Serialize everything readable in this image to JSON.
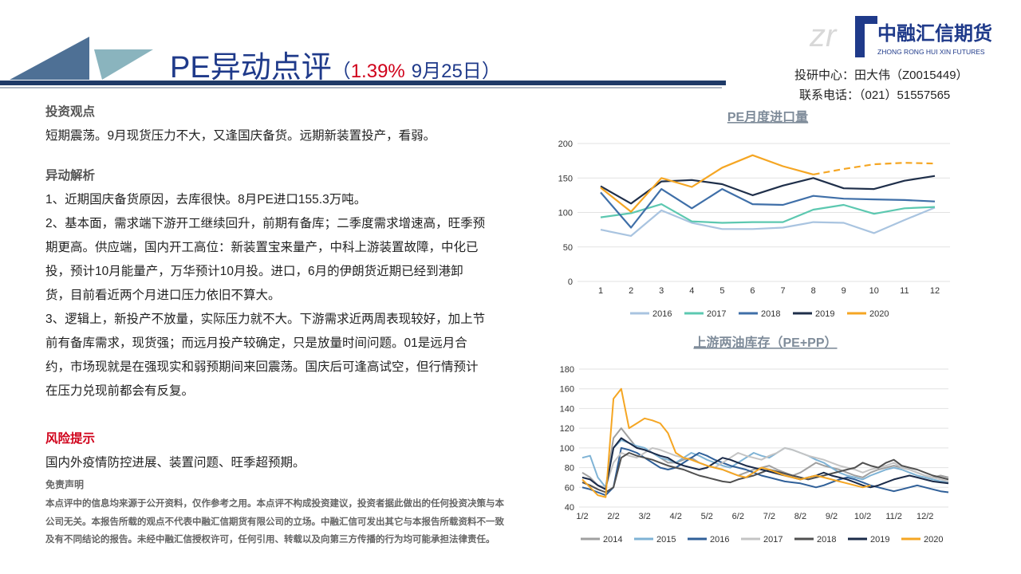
{
  "header": {
    "title": "PE异动点评",
    "open_paren": "（",
    "change": "1.39%",
    "date": "9月25日",
    "close_paren": "）",
    "logo_cn": "中融汇信期货",
    "logo_en": "ZHONG RONG HUI XIN FUTURES",
    "author": "投研中心：田大伟（Z0015449）",
    "phone": "联系电话：（021）51557565"
  },
  "body": {
    "view_heading": "投资观点",
    "view_text": "短期震荡。9月现货压力不大，又逢国庆备货。远期新装置投产，看弱。",
    "analysis_heading": "异动解析",
    "analysis": [
      "1、近期国庆备货原因，去库很快。8月PE进口155.3万吨。",
      "2、基本面，需求端下游开工继续回升，前期有备库；二季度需求增速高，旺季预期更高。供应端，国内开工高位：新装置宝来量产，中科上游装置故障，中化已投，预计10月能量产，万华预计10月投。进口，6月的伊朗货近期已经到港卸货，目前看近两个月进口压力依旧不算大。",
      "3、逻辑上，新投产不放量，实际压力就不大。下游需求近两周表现较好，加上节前有备库需求，现货强；而远月投产较确定，只是放量时间问题。01是远月合约，市场现就是在强现实和弱预期间来回震荡。国庆后可逢高试空，但行情预计在压力兑现前都会有反复。"
    ],
    "risk_heading": "风险提示",
    "risk_text": "国内外疫情防控进展、装置问题、旺季超预期。"
  },
  "disclaimer": {
    "heading": "免责声明",
    "text": "本点评中的信息均来源于公开资料，仅作参考之用。本点评不构成投资建议，投资者据此做出的任何投资决策与本公司无关。本报告所载的观点不代表中融汇信期货有限公司的立场。中融汇信可发出其它与本报告所载资料不一致及有不同结论的报告。未经中融汇信授权许可，任何引用、转载以及向第三方传播的行为均可能承担法律责任。"
  },
  "chart_data": [
    {
      "type": "line",
      "title": "PE月度进口量",
      "categories": [
        "1",
        "2",
        "3",
        "4",
        "5",
        "6",
        "7",
        "8",
        "9",
        "10",
        "11",
        "12"
      ],
      "ylim": [
        0,
        200
      ],
      "yticks": [
        0,
        50,
        100,
        150,
        200
      ],
      "grid": true,
      "legend": "bottom",
      "series": [
        {
          "name": "2016",
          "color": "#a9c4e0",
          "values": [
            75,
            66,
            103,
            85,
            76,
            76,
            78,
            86,
            85,
            70,
            89,
            107
          ]
        },
        {
          "name": "2017",
          "color": "#5cc8b0",
          "values": [
            93,
            99,
            112,
            87,
            85,
            86,
            86,
            104,
            111,
            98,
            106,
            108
          ]
        },
        {
          "name": "2018",
          "color": "#3f6fa8",
          "values": [
            129,
            78,
            134,
            106,
            134,
            112,
            111,
            124,
            120,
            119,
            118,
            116
          ]
        },
        {
          "name": "2019",
          "color": "#1f2f4a",
          "values": [
            138,
            113,
            145,
            147,
            141,
            125,
            139,
            150,
            135,
            134,
            146,
            153
          ]
        },
        {
          "name": "2020",
          "color": "#f5a623",
          "dash_from": 7,
          "values": [
            136,
            101,
            150,
            137,
            165,
            183,
            167,
            155,
            163,
            170,
            172,
            171
          ]
        }
      ]
    },
    {
      "type": "line",
      "title": "上游两油库存（PE+PP）",
      "categories": [
        "1/2",
        null,
        null,
        null,
        "2/2",
        null,
        null,
        null,
        "3/2",
        null,
        null,
        null,
        "4/2",
        null,
        null,
        null,
        "5/2",
        null,
        null,
        null,
        "6/2",
        null,
        null,
        null,
        "7/2",
        null,
        null,
        null,
        "8/2",
        null,
        null,
        null,
        "9/2",
        null,
        null,
        null,
        "10/2",
        null,
        null,
        null,
        "11/2",
        null,
        null,
        null,
        "12/2",
        null,
        null,
        null
      ],
      "ylim": [
        40,
        180
      ],
      "yticks": [
        40,
        60,
        80,
        100,
        120,
        140,
        160,
        180
      ],
      "grid": true,
      "legend": "bottom",
      "series": [
        {
          "name": "2014",
          "color": "#a0a0a0",
          "values": [
            75,
            70,
            62,
            60,
            110,
            120,
            110,
            100,
            98,
            95,
            90,
            85,
            85,
            88,
            90,
            85,
            82,
            80,
            78,
            75,
            72,
            75,
            78,
            80,
            82,
            78,
            75,
            72,
            75,
            80,
            85,
            82,
            80,
            78,
            75,
            72,
            70,
            75,
            78,
            80,
            82,
            80,
            78,
            75,
            72,
            70,
            72,
            70
          ]
        },
        {
          "name": "2015",
          "color": "#7fb3d5",
          "values": [
            90,
            92,
            70,
            60,
            100,
            108,
            105,
            102,
            100,
            95,
            90,
            88,
            85,
            90,
            95,
            92,
            88,
            85,
            82,
            80,
            85,
            90,
            95,
            92,
            90,
            95,
            100,
            98,
            95,
            92,
            88,
            85,
            80,
            75,
            72,
            70,
            68,
            72,
            75,
            78,
            80,
            78,
            75,
            72,
            70,
            68,
            66,
            65
          ]
        },
        {
          "name": "2016",
          "color": "#2f5f98",
          "values": [
            60,
            58,
            55,
            52,
            60,
            100,
            98,
            95,
            90,
            85,
            80,
            78,
            80,
            85,
            90,
            95,
            92,
            88,
            85,
            82,
            80,
            78,
            75,
            72,
            70,
            68,
            66,
            65,
            64,
            62,
            60,
            62,
            65,
            68,
            70,
            68,
            65,
            62,
            60,
            58,
            56,
            58,
            60,
            62,
            60,
            58,
            56,
            55
          ]
        },
        {
          "name": "2017",
          "color": "#c4c4c4",
          "values": [
            70,
            68,
            62,
            60,
            85,
            95,
            92,
            90,
            95,
            100,
            98,
            95,
            92,
            90,
            88,
            85,
            82,
            80,
            85,
            90,
            95,
            92,
            90,
            88,
            92,
            95,
            100,
            98,
            95,
            92,
            90,
            88,
            85,
            82,
            80,
            78,
            75,
            78,
            80,
            82,
            85,
            80,
            78,
            75,
            72,
            70,
            68,
            66
          ]
        },
        {
          "name": "2018",
          "color": "#505050",
          "values": [
            65,
            62,
            58,
            55,
            60,
            90,
            95,
            92,
            90,
            88,
            85,
            82,
            80,
            78,
            75,
            72,
            70,
            68,
            66,
            65,
            68,
            70,
            72,
            75,
            78,
            76,
            74,
            72,
            70,
            68,
            70,
            72,
            74,
            76,
            78,
            80,
            85,
            82,
            80,
            85,
            88,
            82,
            80,
            78,
            75,
            72,
            70,
            68
          ]
        },
        {
          "name": "2019",
          "color": "#1a2a48",
          "values": [
            70,
            68,
            62,
            58,
            100,
            110,
            105,
            100,
            98,
            95,
            92,
            90,
            85,
            82,
            80,
            78,
            80,
            85,
            90,
            88,
            85,
            82,
            80,
            78,
            76,
            74,
            72,
            70,
            68,
            70,
            72,
            75,
            72,
            70,
            68,
            65,
            62,
            60,
            62,
            65,
            68,
            70,
            72,
            70,
            68,
            66,
            65,
            64
          ]
        },
        {
          "name": "2020",
          "color": "#f5a623",
          "values": [
            68,
            60,
            52,
            50,
            150,
            160,
            120,
            125,
            130,
            128,
            125,
            115,
            95,
            90,
            88,
            85,
            82,
            80,
            78,
            75,
            72,
            70,
            75,
            80,
            78,
            75,
            72,
            70,
            68,
            70,
            72,
            70,
            68,
            66,
            64,
            62,
            60,
            62,
            null,
            null,
            null,
            null,
            null,
            null,
            null,
            null,
            null,
            null
          ]
        }
      ]
    }
  ]
}
